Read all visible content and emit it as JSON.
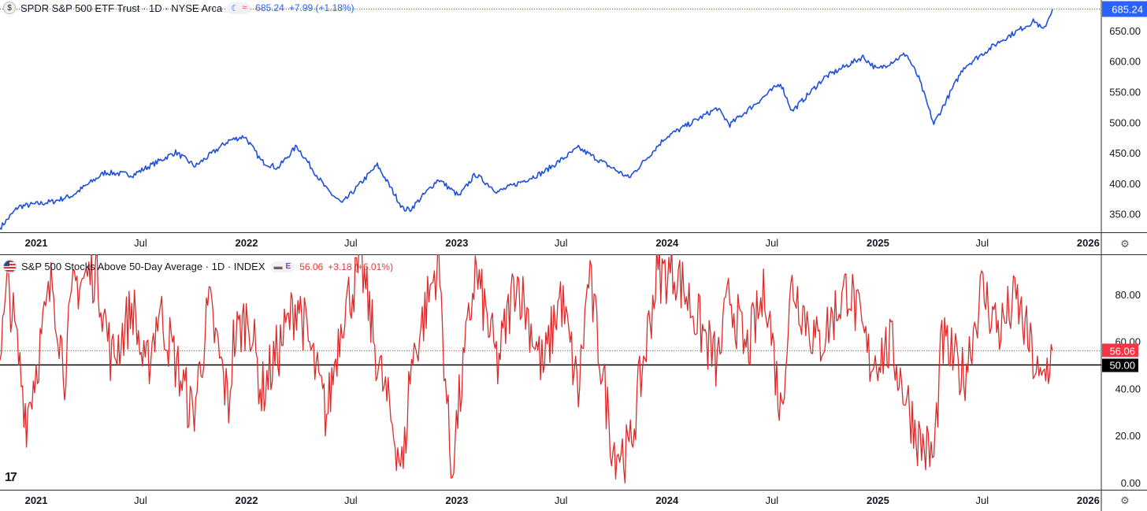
{
  "colors": {
    "price_line": "#1f4fd9",
    "breadth_line": "#e02a2a",
    "price_tag": "#2962ff",
    "breadth_tag": "#f23645",
    "baseline_tag": "#000000"
  },
  "top_pane": {
    "legend": {
      "symbol_icon_text": "$",
      "title": "SPDR S&P 500 ETF Trust · 1D · NYSE Arca",
      "last": "685.24",
      "change": "+7.99 (+1.18%)"
    },
    "price_tag": "685.24"
  },
  "bottom_pane": {
    "legend": {
      "title": "S&P 500 Stocks Above 50-Day Average · 1D · INDEX",
      "badge": "E",
      "last": "56.06",
      "change": "+3.18 (+6.01%)"
    },
    "value_tag": "56.06",
    "baseline_tag": "50.00"
  },
  "x_axis_labels": [
    "2021",
    "Jul",
    "2022",
    "Jul",
    "2023",
    "Jul",
    "2024",
    "Jul",
    "2025",
    "Jul",
    "2026"
  ],
  "chart_data": [
    {
      "type": "line",
      "series": [
        {
          "name": "SPDR S&P 500 ETF Trust",
          "x": [
            "2020-10-30",
            "2020-12-01",
            "2021-01-29",
            "2021-03-04",
            "2021-04-30",
            "2021-06-18",
            "2021-08-31",
            "2021-10-04",
            "2021-12-01",
            "2021-12-29",
            "2022-01-27",
            "2022-02-24",
            "2022-03-29",
            "2022-05-20",
            "2022-06-16",
            "2022-08-16",
            "2022-09-30",
            "2022-10-12",
            "2022-11-30",
            "2023-01-05",
            "2023-02-02",
            "2023-03-13",
            "2023-05-31",
            "2023-07-31",
            "2023-10-27",
            "2023-12-29",
            "2024-03-28",
            "2024-04-19",
            "2024-07-16",
            "2024-08-05",
            "2024-09-30",
            "2024-12-06",
            "2024-12-31",
            "2025-02-19",
            "2025-03-13",
            "2025-04-08",
            "2025-05-30",
            "2025-07-31",
            "2025-09-30",
            "2025-10-15",
            "2025-10-31"
          ],
          "values": [
            327,
            362,
            370,
            380,
            418,
            414,
            451,
            428,
            470,
            477,
            436,
            425,
            461,
            390,
            367,
            430,
            358,
            357,
            407,
            379,
            415,
            386,
            418,
            458,
            409,
            475,
            523,
            496,
            564,
            518,
            573,
            607,
            586,
            612,
            572,
            497,
            590,
            632,
            666,
            650,
            685.24
          ]
        }
      ],
      "y_ticks": [
        "350.00",
        "400.00",
        "450.00",
        "500.00",
        "550.00",
        "600.00",
        "650.00"
      ],
      "ylim": [
        320,
        700
      ],
      "last_value": 685.24,
      "grid": false
    },
    {
      "type": "line",
      "series": [
        {
          "name": "S&P 500 Stocks Above 50-Day Average",
          "x": [
            "2020-10-30",
            "2020-11-13",
            "2020-12-15",
            "2021-01-29",
            "2021-02-19",
            "2021-03-08",
            "2021-04-16",
            "2021-05-12",
            "2021-06-18",
            "2021-07-09",
            "2021-08-02",
            "2021-09-30",
            "2021-10-28",
            "2021-12-01",
            "2021-12-09",
            "2022-01-05",
            "2022-01-27",
            "2022-03-31",
            "2022-05-20",
            "2022-06-16",
            "2022-07-20",
            "2022-08-16",
            "2022-09-30",
            "2022-10-12",
            "2022-11-30",
            "2022-12-22",
            "2023-02-02",
            "2023-03-13",
            "2023-04-14",
            "2023-05-31",
            "2023-06-30",
            "2023-07-31",
            "2023-08-18",
            "2023-09-29",
            "2023-10-27",
            "2023-12-14",
            "2024-01-16",
            "2024-03-28",
            "2024-04-19",
            "2024-05-17",
            "2024-06-21",
            "2024-07-16",
            "2024-08-05",
            "2024-09-19",
            "2024-11-11",
            "2024-12-18",
            "2025-01-24",
            "2025-03-13",
            "2025-04-08",
            "2025-04-22",
            "2025-05-30",
            "2025-06-30",
            "2025-07-31",
            "2025-08-29",
            "2025-09-25",
            "2025-10-10",
            "2025-10-31"
          ],
          "values": [
            52,
            85,
            28,
            86,
            48,
            84,
            90,
            52,
            75,
            45,
            74,
            28,
            75,
            33,
            60,
            72,
            38,
            78,
            28,
            72,
            92,
            52,
            5,
            48,
            95,
            5,
            90,
            50,
            88,
            48,
            80,
            38,
            88,
            15,
            12,
            88,
            90,
            50,
            80,
            55,
            82,
            30,
            85,
            58,
            84,
            52,
            58,
            18,
            10,
            60,
            45,
            82,
            65,
            78,
            55,
            40,
            56.06
          ]
        }
      ],
      "y_ticks": [
        "0.00",
        "20.00",
        "40.00",
        "60.00",
        "80.00"
      ],
      "ylim": [
        -3,
        97
      ],
      "reference_lines": [
        50,
        56.06
      ],
      "last_value": 56.06,
      "grid": false
    }
  ]
}
